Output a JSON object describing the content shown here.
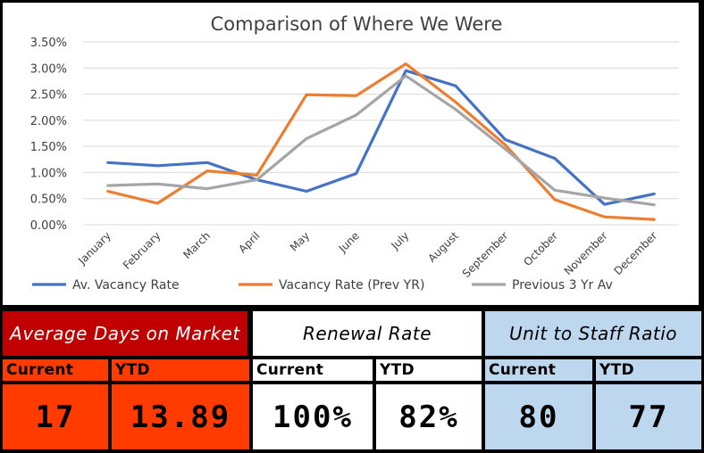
{
  "colors": {
    "series_blue": "#4472C4",
    "series_orange": "#ED7D31",
    "series_gray": "#A5A5A5",
    "panel_red": "#C00000",
    "panel_orange": "#FF3B00",
    "panel_white": "#FFFFFF",
    "panel_blue": "#BDD7EE"
  },
  "chart_data": {
    "type": "line",
    "title": "Comparison of Where We Were",
    "categories": [
      "January",
      "February",
      "March",
      "April",
      "May",
      "June",
      "July",
      "August",
      "September",
      "October",
      "November",
      "December"
    ],
    "ylim": [
      0,
      3.5
    ],
    "yticks": [
      "0.00%",
      "0.50%",
      "1.00%",
      "1.50%",
      "2.00%",
      "2.50%",
      "3.00%",
      "3.50%"
    ],
    "ytick_values": [
      0,
      0.5,
      1,
      1.5,
      2,
      2.5,
      3,
      3.5
    ],
    "series": [
      {
        "name": "Av. Vacancy Rate",
        "color": "#4472C4",
        "values": [
          1.19,
          1.13,
          1.19,
          0.86,
          0.64,
          0.98,
          2.95,
          2.66,
          1.63,
          1.27,
          0.39,
          0.59
        ]
      },
      {
        "name": "Vacancy Rate (Prev YR)",
        "color": "#ED7D31",
        "values": [
          0.64,
          0.41,
          1.03,
          0.95,
          2.49,
          2.47,
          3.08,
          2.35,
          1.53,
          0.48,
          0.15,
          0.1
        ]
      },
      {
        "name": "Previous 3 Yr Av",
        "color": "#A5A5A5",
        "values": [
          0.75,
          0.78,
          0.69,
          0.86,
          1.65,
          2.1,
          2.85,
          2.21,
          1.45,
          0.66,
          0.51,
          0.38
        ]
      }
    ],
    "grid": true,
    "legend_position": "bottom"
  },
  "kpis": {
    "days_on_market": {
      "title": "Average Days on Market",
      "current_label": "Current",
      "ytd_label": "YTD",
      "current": "17",
      "ytd": "13.89"
    },
    "renewal_rate": {
      "title": "Renewal Rate",
      "current_label": "Current",
      "ytd_label": "YTD",
      "current": "100%",
      "ytd": "82%"
    },
    "unit_staff": {
      "title": "Unit to Staff Ratio",
      "current_label": "Current",
      "ytd_label": "YTD",
      "current": "80",
      "ytd": "77"
    }
  }
}
